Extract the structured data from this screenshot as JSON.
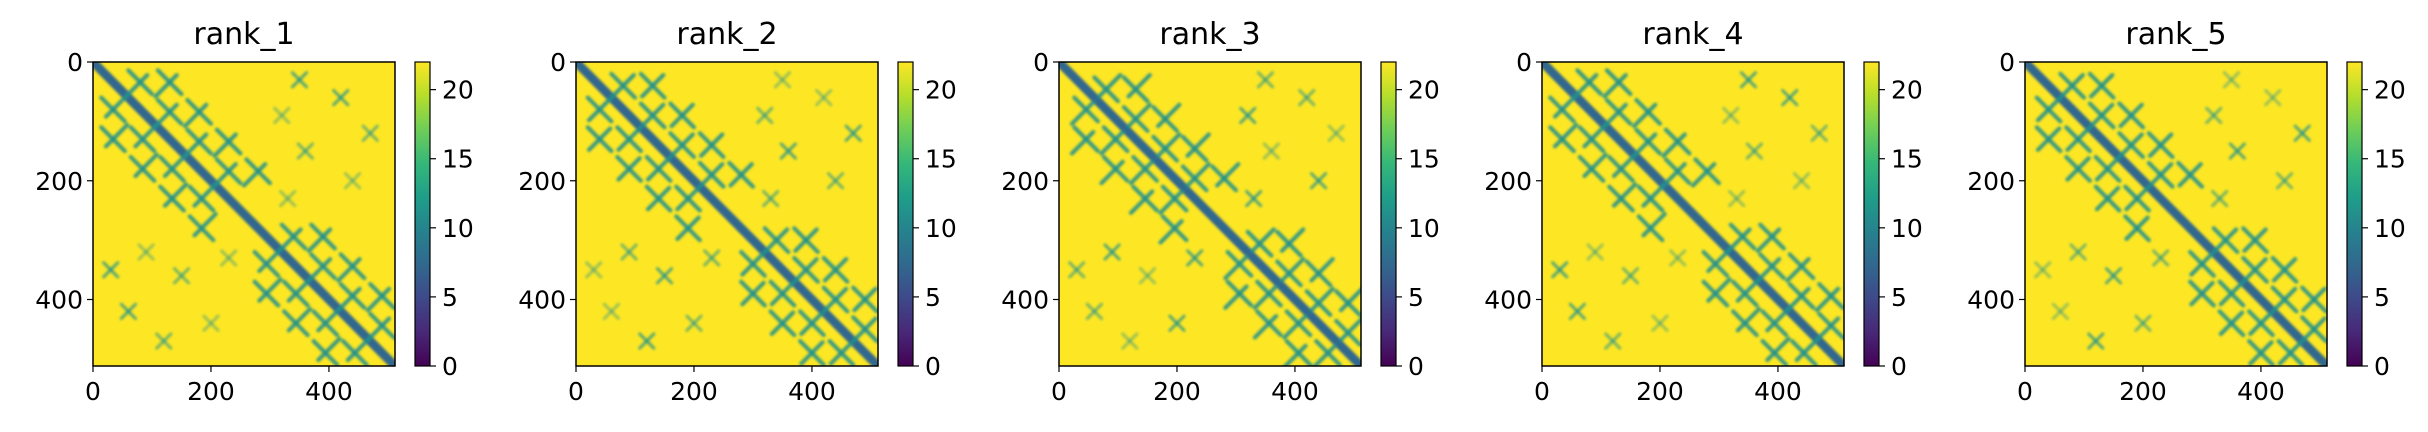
{
  "chart_data": {
    "type": "heatmap",
    "colormap": "viridis",
    "colors": {
      "low": "#440154",
      "mid": "#21918c",
      "high": "#fde725",
      "diagonal": "#31688e"
    },
    "matrix_size": 512,
    "xlim": [
      0,
      512
    ],
    "ylim": [
      512,
      0
    ],
    "x_ticks": [
      0,
      200,
      400
    ],
    "y_ticks": [
      0,
      200,
      400
    ],
    "colorbar": {
      "min": 0,
      "max": 22,
      "ticks": [
        0,
        5,
        10,
        15,
        20
      ]
    },
    "panels": [
      {
        "title": "rank_1"
      },
      {
        "title": "rank_2"
      },
      {
        "title": "rank_3"
      },
      {
        "title": "rank_4"
      },
      {
        "title": "rank_5"
      }
    ]
  }
}
